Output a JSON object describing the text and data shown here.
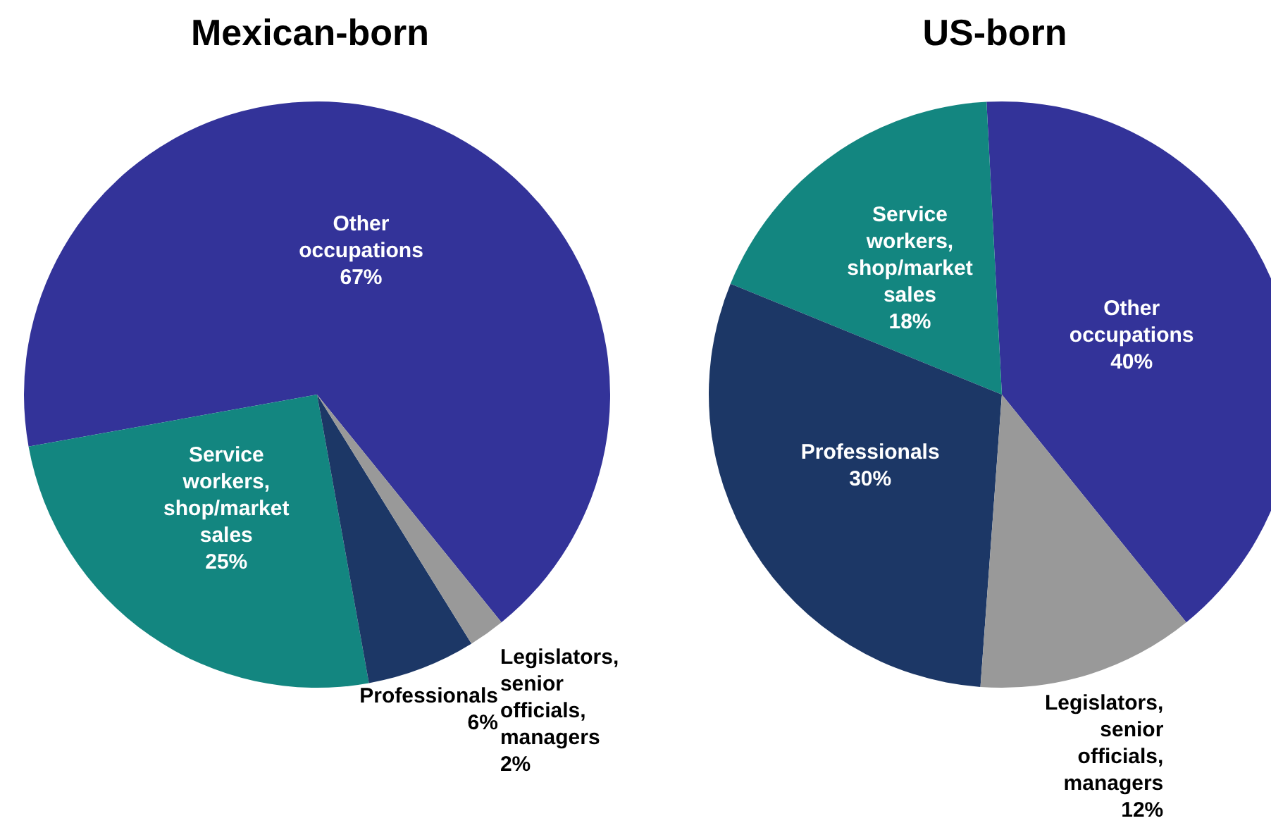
{
  "chart_data": [
    {
      "type": "pie",
      "title": "Mexican-born",
      "categories": [
        "Other occupations",
        "Service workers, shop/market sales",
        "Professionals",
        "Legislators, senior officials, managers"
      ],
      "values": [
        67,
        25,
        6,
        2
      ],
      "value_labels": [
        "67%",
        "25%",
        "6%",
        "2%"
      ],
      "colors": [
        "#333399",
        "#138680",
        "#1c3766",
        "#999999"
      ]
    },
    {
      "type": "pie",
      "title": "US-born",
      "categories": [
        "Other occupations",
        "Service workers, shop/market sales",
        "Professionals",
        "Legislators, senior officials, managers"
      ],
      "values": [
        40,
        18,
        30,
        12
      ],
      "value_labels": [
        "40%",
        "18%",
        "30%",
        "12%"
      ],
      "colors": [
        "#333399",
        "#138680",
        "#1c3766",
        "#999999"
      ]
    }
  ]
}
